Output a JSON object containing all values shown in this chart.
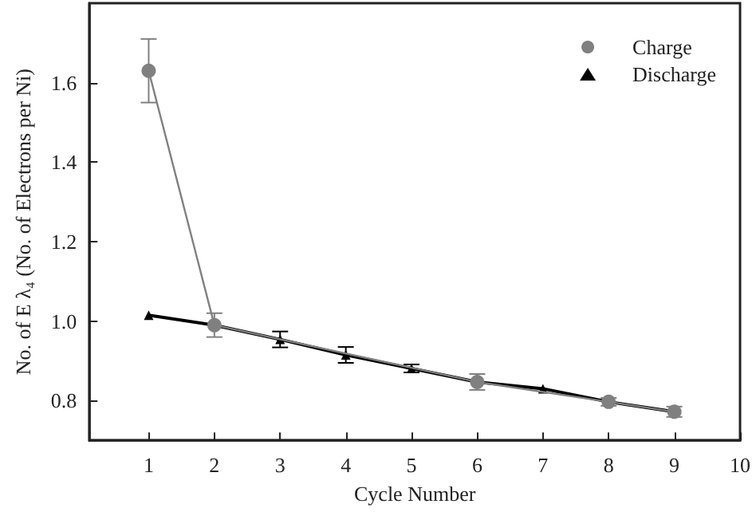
{
  "chart_data": {
    "type": "line",
    "xlabel": "Cycle Number",
    "ylabel": "No. of E λ₄ (No. of Electrons per Ni)",
    "x": [
      1,
      2,
      3,
      4,
      5,
      6,
      7,
      8,
      9
    ],
    "series": [
      {
        "name": "Charge",
        "color": "#808080",
        "marker": "circle",
        "values": [
          1.63,
          0.99,
          null,
          null,
          null,
          0.847,
          null,
          0.797,
          0.772
        ],
        "errors": [
          0.08,
          0.03,
          null,
          null,
          null,
          0.02,
          null,
          0.01,
          0.013
        ]
      },
      {
        "name": "Discharge",
        "color": "#000000",
        "marker": "triangle",
        "values": [
          1.015,
          0.99,
          0.954,
          0.915,
          0.881,
          0.847,
          0.83,
          0.797,
          0.772
        ],
        "errors": [
          null,
          null,
          0.02,
          0.02,
          0.01,
          null,
          null,
          null,
          null
        ]
      }
    ],
    "xlim": [
      0.1,
      10
    ],
    "xticks": [
      1,
      2,
      3,
      4,
      5,
      6,
      7,
      8,
      9,
      10
    ],
    "ylim": [
      0.7,
      1.8
    ],
    "yticks": [
      0.8,
      {
        "value": 1,
        "label": "1.0"
      },
      1.2,
      1.4,
      1.6
    ],
    "grid": false,
    "legend": "top right",
    "line_style": "solid"
  }
}
